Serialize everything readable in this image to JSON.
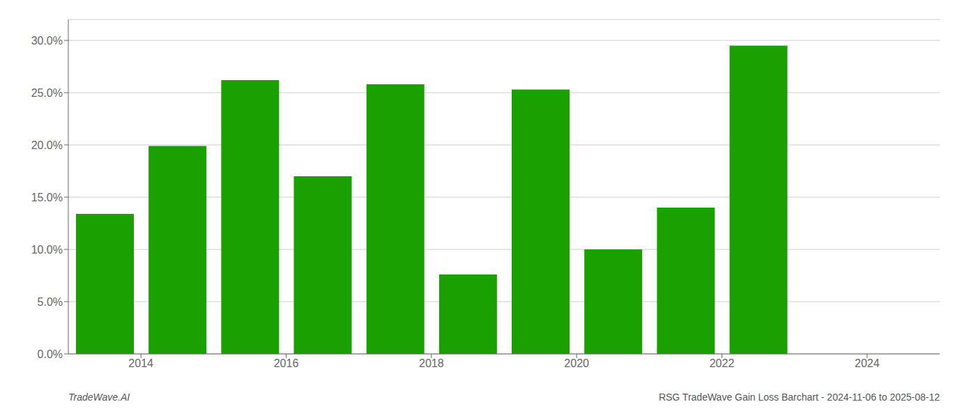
{
  "chart_data": {
    "type": "bar",
    "x": [
      2013.5,
      2014.5,
      2015.5,
      2016.5,
      2017.5,
      2018.5,
      2019.5,
      2020.5,
      2021.5,
      2022.5
    ],
    "values": [
      0.134,
      0.199,
      0.262,
      0.17,
      0.258,
      0.076,
      0.253,
      0.1,
      0.14,
      0.295
    ],
    "color": "#1aa000",
    "xlim": [
      2013.0,
      2025.0
    ],
    "ylim": [
      0,
      0.32
    ],
    "xticks": [
      2014,
      2016,
      2018,
      2020,
      2022,
      2024
    ],
    "yticks": [
      {
        "value": 0.0,
        "label": "0.0%"
      },
      {
        "value": 0.05,
        "label": "5.0%"
      },
      {
        "value": 0.1,
        "label": "10.0%"
      },
      {
        "value": 0.15,
        "label": "15.0%"
      },
      {
        "value": 0.2,
        "label": "20.0%"
      },
      {
        "value": 0.25,
        "label": "25.0%"
      },
      {
        "value": 0.3,
        "label": "30.0%"
      }
    ],
    "grid": true,
    "annotations": [
      "TradeWave.AI",
      "RSG TradeWave Gain Loss Barchart - 2024-11-06 to 2025-08-12"
    ]
  }
}
